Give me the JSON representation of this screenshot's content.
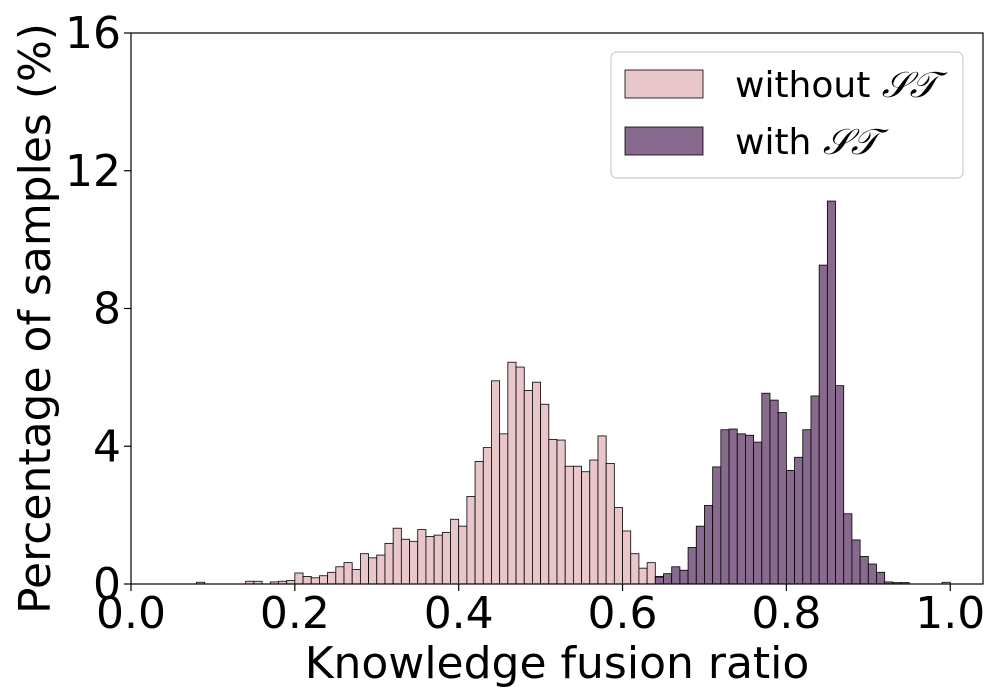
{
  "chart_data": {
    "type": "bar",
    "subtype": "histogram",
    "title": "",
    "xlabel": "Knowledge fusion ratio",
    "ylabel": "Percentage of samples (%)",
    "xlim": [
      0.0,
      1.04
    ],
    "ylim": [
      0,
      16
    ],
    "xticks": [
      "0.0",
      "0.2",
      "0.4",
      "0.6",
      "0.8",
      "1.0"
    ],
    "yticks": [
      "0",
      "4",
      "8",
      "12",
      "16"
    ],
    "bin_width": 0.01,
    "grid": false,
    "legend_position": "top-right",
    "series": [
      {
        "name": "without 𝒮𝒯",
        "legend_prefix": "without ",
        "legend_math": "𝒮𝒯",
        "color": "#e8c6c9",
        "bins": [
          [
            0.08,
            0.05
          ],
          [
            0.14,
            0.08
          ],
          [
            0.15,
            0.08
          ],
          [
            0.17,
            0.06
          ],
          [
            0.18,
            0.08
          ],
          [
            0.19,
            0.1
          ],
          [
            0.2,
            0.32
          ],
          [
            0.21,
            0.22
          ],
          [
            0.22,
            0.18
          ],
          [
            0.23,
            0.24
          ],
          [
            0.24,
            0.34
          ],
          [
            0.25,
            0.5
          ],
          [
            0.26,
            0.62
          ],
          [
            0.27,
            0.42
          ],
          [
            0.28,
            0.88
          ],
          [
            0.29,
            0.76
          ],
          [
            0.3,
            0.84
          ],
          [
            0.31,
            1.18
          ],
          [
            0.32,
            1.62
          ],
          [
            0.33,
            1.3
          ],
          [
            0.34,
            1.24
          ],
          [
            0.35,
            1.58
          ],
          [
            0.36,
            1.38
          ],
          [
            0.37,
            1.42
          ],
          [
            0.38,
            1.5
          ],
          [
            0.39,
            1.88
          ],
          [
            0.4,
            1.68
          ],
          [
            0.41,
            2.54
          ],
          [
            0.42,
            3.56
          ],
          [
            0.43,
            3.96
          ],
          [
            0.44,
            5.9
          ],
          [
            0.45,
            4.36
          ],
          [
            0.46,
            6.44
          ],
          [
            0.47,
            6.3
          ],
          [
            0.48,
            5.62
          ],
          [
            0.49,
            5.86
          ],
          [
            0.5,
            5.22
          ],
          [
            0.51,
            4.2
          ],
          [
            0.52,
            4.18
          ],
          [
            0.53,
            3.42
          ],
          [
            0.54,
            3.42
          ],
          [
            0.55,
            3.26
          ],
          [
            0.56,
            3.6
          ],
          [
            0.57,
            4.3
          ],
          [
            0.58,
            3.5
          ],
          [
            0.59,
            2.22
          ],
          [
            0.6,
            1.54
          ],
          [
            0.61,
            0.88
          ],
          [
            0.62,
            0.46
          ],
          [
            0.63,
            0.62
          ],
          [
            0.64,
            0.22
          ],
          [
            0.66,
            0.08
          ],
          [
            0.71,
            0.04
          ],
          [
            0.72,
            0.04
          ],
          [
            0.99,
            0.05
          ]
        ]
      },
      {
        "name": "with 𝒮𝒯",
        "legend_prefix": "with ",
        "legend_math": "𝒮𝒯",
        "color": "#876a8e",
        "bins": [
          [
            0.64,
            0.2
          ],
          [
            0.65,
            0.3
          ],
          [
            0.66,
            0.5
          ],
          [
            0.67,
            0.4
          ],
          [
            0.68,
            1.06
          ],
          [
            0.69,
            1.68
          ],
          [
            0.7,
            2.28
          ],
          [
            0.71,
            3.4
          ],
          [
            0.72,
            4.48
          ],
          [
            0.73,
            4.5
          ],
          [
            0.74,
            4.36
          ],
          [
            0.75,
            4.32
          ],
          [
            0.76,
            4.12
          ],
          [
            0.77,
            5.54
          ],
          [
            0.78,
            5.34
          ],
          [
            0.79,
            4.98
          ],
          [
            0.8,
            3.3
          ],
          [
            0.81,
            3.68
          ],
          [
            0.82,
            4.48
          ],
          [
            0.83,
            5.46
          ],
          [
            0.84,
            9.26
          ],
          [
            0.85,
            11.12
          ],
          [
            0.86,
            5.76
          ],
          [
            0.87,
            2.04
          ],
          [
            0.88,
            1.28
          ],
          [
            0.89,
            0.8
          ],
          [
            0.9,
            0.58
          ],
          [
            0.91,
            0.34
          ],
          [
            0.92,
            0.06
          ],
          [
            0.93,
            0.04
          ],
          [
            0.94,
            0.04
          ]
        ]
      }
    ]
  }
}
